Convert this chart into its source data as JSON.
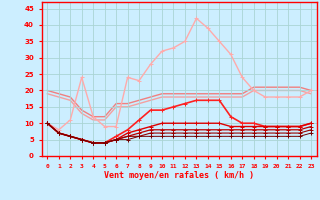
{
  "x": [
    0,
    1,
    2,
    3,
    4,
    5,
    6,
    7,
    8,
    9,
    10,
    11,
    12,
    13,
    14,
    15,
    16,
    17,
    18,
    19,
    20,
    21,
    22,
    23
  ],
  "series": [
    {
      "y": [
        20,
        19,
        18,
        14,
        12,
        12,
        16,
        16,
        17,
        18,
        19,
        19,
        19,
        19,
        19,
        19,
        19,
        19,
        21,
        21,
        21,
        21,
        21,
        20
      ],
      "color": "#f08080",
      "lw": 1.0,
      "marker": null
    },
    {
      "y": [
        19,
        18,
        17,
        13,
        11,
        11,
        15,
        15,
        16,
        17,
        18,
        18,
        18,
        18,
        18,
        18,
        18,
        18,
        20,
        20,
        20,
        20,
        20,
        19
      ],
      "color": "#f4a0a0",
      "lw": 1.0,
      "marker": null
    },
    {
      "y": [
        10,
        8,
        11,
        24,
        12,
        9,
        9,
        24,
        23,
        28,
        32,
        33,
        35,
        42,
        39,
        35,
        31,
        24,
        20,
        18,
        18,
        18,
        18,
        20
      ],
      "color": "#ffaaaa",
      "lw": 1.0,
      "marker": "+"
    },
    {
      "y": [
        10,
        7,
        6,
        5,
        4,
        4,
        6,
        8,
        11,
        14,
        14,
        15,
        16,
        17,
        17,
        17,
        12,
        10,
        10,
        9,
        9,
        9,
        9,
        10
      ],
      "color": "#ff2020",
      "lw": 1.2,
      "marker": "+"
    },
    {
      "y": [
        10,
        7,
        6,
        5,
        4,
        4,
        5,
        7,
        8,
        9,
        10,
        10,
        10,
        10,
        10,
        10,
        9,
        9,
        9,
        9,
        9,
        9,
        9,
        10
      ],
      "color": "#dd0000",
      "lw": 1.0,
      "marker": "+"
    },
    {
      "y": [
        10,
        7,
        6,
        5,
        4,
        4,
        5,
        6,
        7,
        8,
        8,
        8,
        8,
        8,
        8,
        8,
        8,
        8,
        8,
        8,
        8,
        8,
        8,
        9
      ],
      "color": "#bb0000",
      "lw": 0.9,
      "marker": "+"
    },
    {
      "y": [
        10,
        7,
        6,
        5,
        4,
        4,
        5,
        6,
        6,
        7,
        7,
        7,
        7,
        7,
        7,
        7,
        7,
        7,
        7,
        7,
        7,
        7,
        7,
        8
      ],
      "color": "#990000",
      "lw": 0.8,
      "marker": "+"
    },
    {
      "y": [
        10,
        7,
        6,
        5,
        4,
        4,
        5,
        5,
        6,
        6,
        6,
        6,
        6,
        6,
        6,
        6,
        6,
        6,
        6,
        6,
        6,
        6,
        6,
        7
      ],
      "color": "#770000",
      "lw": 0.7,
      "marker": "+"
    }
  ],
  "xlabel": "Vent moyen/en rafales ( km/h )",
  "ylabel_ticks": [
    0,
    5,
    10,
    15,
    20,
    25,
    30,
    35,
    40,
    45
  ],
  "xlim": [
    -0.5,
    23.5
  ],
  "ylim": [
    0,
    47
  ],
  "bg_color": "#cceeff",
  "grid_color": "#aad4d4",
  "axis_color": "#ff0000",
  "tick_color": "#ff0000",
  "label_color": "#ff0000",
  "figsize": [
    3.2,
    2.0
  ],
  "dpi": 100
}
